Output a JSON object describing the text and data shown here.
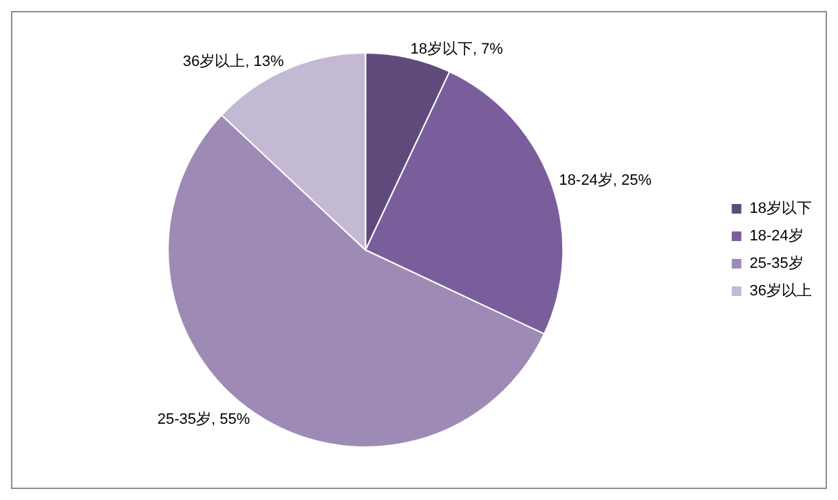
{
  "chart_data": {
    "type": "pie",
    "categories": [
      "18岁以下",
      "18-24岁",
      "25-35岁",
      "36岁以上"
    ],
    "values": [
      7,
      25,
      55,
      13
    ],
    "colors": [
      "#604a7b",
      "#7a5e9b",
      "#9d8bb5",
      "#c3b9d4"
    ],
    "value_labels": [
      "18岁以下, 7%",
      "18-24岁, 25%",
      "25-35岁, 55%",
      "36岁以上, 13%"
    ],
    "legend": "right"
  }
}
